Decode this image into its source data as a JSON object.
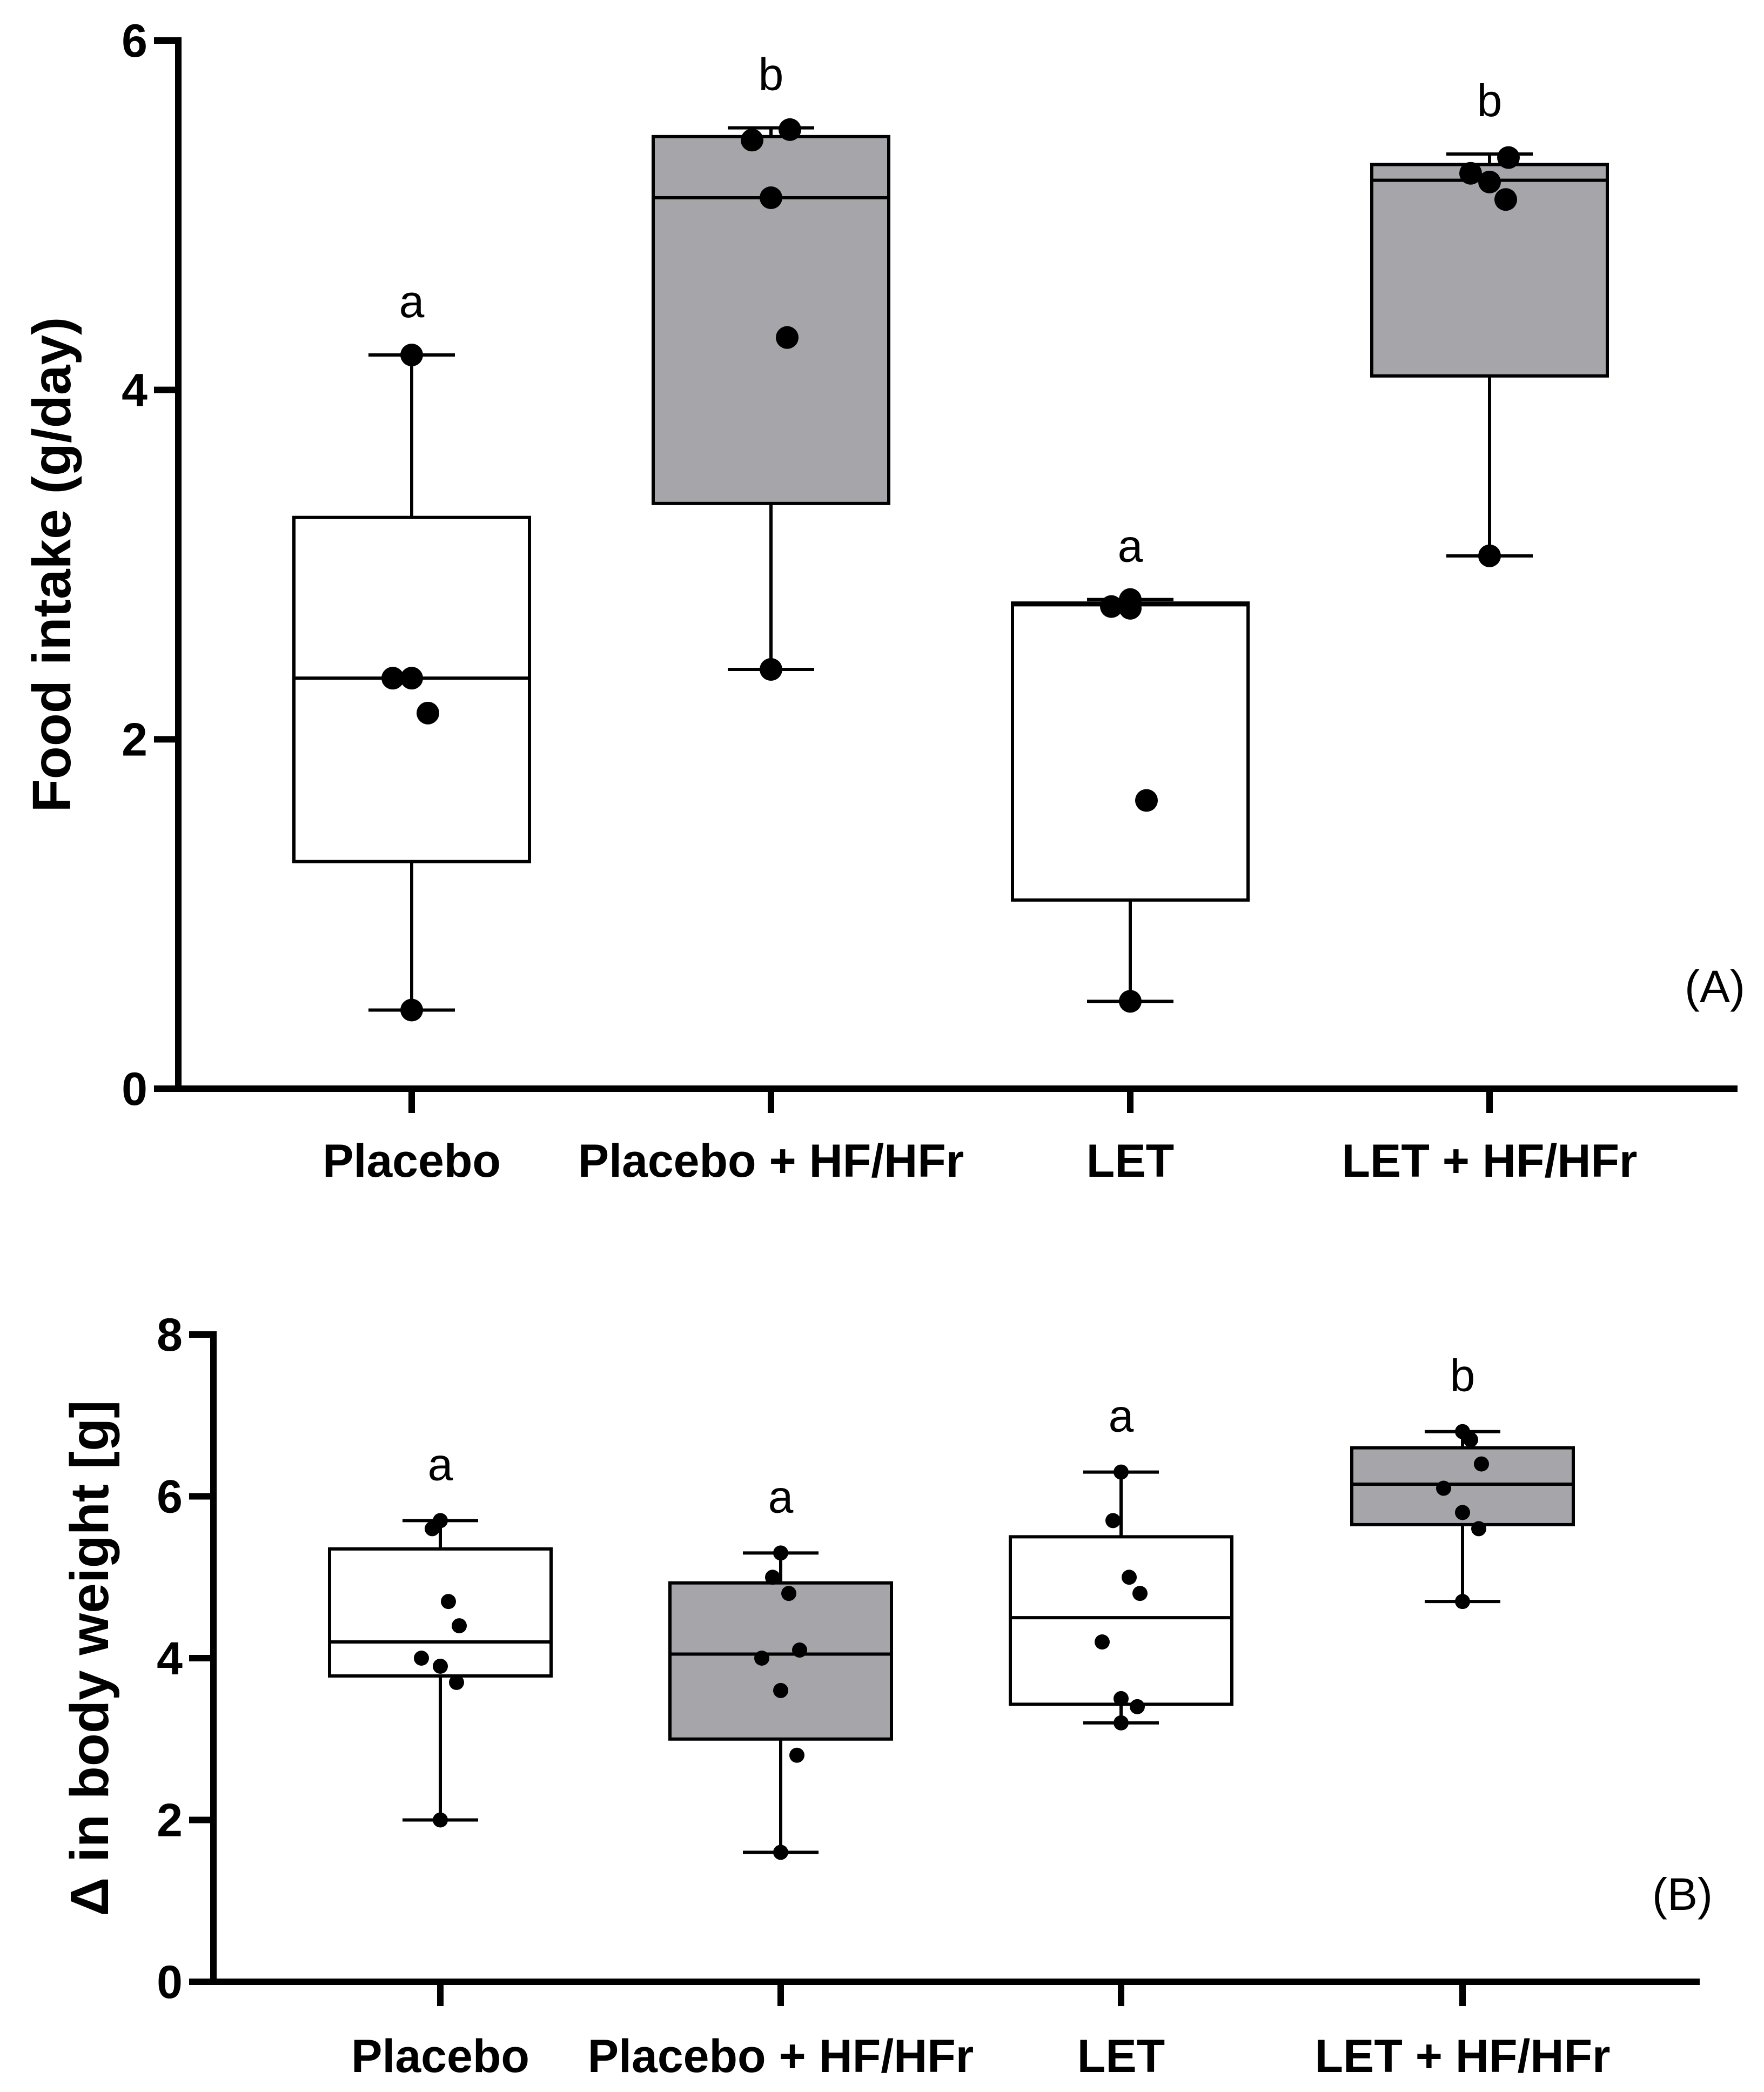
{
  "chart_data": [
    {
      "type": "box",
      "panel": "A",
      "panel_label": "(A)",
      "ylabel": "Food intake (g/day)",
      "xlabel": "",
      "ylim": [
        0,
        6
      ],
      "yticks": [
        0,
        2,
        4,
        6
      ],
      "yticklabels": [
        "0",
        "2",
        "4",
        "6"
      ],
      "categories": [
        "Placebo",
        "Placebo + HF/HFr",
        "LET",
        "LET + HF/HFr"
      ],
      "groups": [
        {
          "name": "Placebo",
          "fill": "#ffffff",
          "min": 0.45,
          "q1": 1.3,
          "median": 2.35,
          "q3": 3.27,
          "max": 4.2,
          "points": [
            0.45,
            2.15,
            2.35,
            2.35,
            4.2
          ],
          "sig": "a"
        },
        {
          "name": "Placebo + HF/HFr",
          "fill": "#a6a5aa",
          "min": 2.4,
          "q1": 3.35,
          "median": 5.1,
          "q3": 5.45,
          "max": 5.5,
          "points": [
            2.4,
            4.3,
            5.1,
            5.43,
            5.49
          ],
          "sig": "b"
        },
        {
          "name": "LET",
          "fill": "#ffffff",
          "min": 0.5,
          "q1": 1.08,
          "median": 2.77,
          "q3": 2.78,
          "max": 2.8,
          "points": [
            0.5,
            1.65,
            2.75,
            2.76,
            2.8
          ],
          "sig": "a"
        },
        {
          "name": "LET + HF/HFr",
          "fill": "#a6a5aa",
          "min": 3.05,
          "q1": 4.08,
          "median": 5.2,
          "q3": 5.29,
          "max": 5.35,
          "points": [
            3.05,
            5.09,
            5.19,
            5.24,
            5.33
          ],
          "sig": "b"
        }
      ]
    },
    {
      "type": "box",
      "panel": "B",
      "panel_label": "(B)",
      "ylabel": "Δ in body weight [g]",
      "xlabel": "",
      "ylim": [
        0,
        8
      ],
      "yticks": [
        0,
        2,
        4,
        6,
        8
      ],
      "yticklabels": [
        "0",
        "2",
        "4",
        "6",
        "8"
      ],
      "categories": [
        "Placebo",
        "Placebo + HF/HFr",
        "LET",
        "LET + HF/HFr"
      ],
      "groups": [
        {
          "name": "Placebo",
          "fill": "#ffffff",
          "min": 2.0,
          "q1": 3.78,
          "median": 4.2,
          "q3": 5.35,
          "max": 5.7,
          "points": [
            2.0,
            3.7,
            3.9,
            4.0,
            4.4,
            4.7,
            5.6,
            5.7
          ],
          "sig": "a"
        },
        {
          "name": "Placebo + HF/HFr",
          "fill": "#a6a5aa",
          "min": 1.6,
          "q1": 3.0,
          "median": 4.05,
          "q3": 4.93,
          "max": 5.3,
          "points": [
            1.6,
            2.8,
            3.6,
            4.0,
            4.1,
            4.8,
            5.0,
            5.3
          ],
          "sig": "a"
        },
        {
          "name": "LET",
          "fill": "#ffffff",
          "min": 3.2,
          "q1": 3.43,
          "median": 4.5,
          "q3": 5.5,
          "max": 6.3,
          "points": [
            3.2,
            3.4,
            3.5,
            4.2,
            4.8,
            5.0,
            5.7,
            6.3
          ],
          "sig": "a"
        },
        {
          "name": "LET + HF/HFr",
          "fill": "#a6a5aa",
          "min": 4.7,
          "q1": 5.65,
          "median": 6.15,
          "q3": 6.6,
          "max": 6.8,
          "points": [
            4.7,
            5.6,
            5.8,
            6.1,
            6.4,
            6.7,
            6.8
          ],
          "sig": "b"
        }
      ]
    }
  ]
}
